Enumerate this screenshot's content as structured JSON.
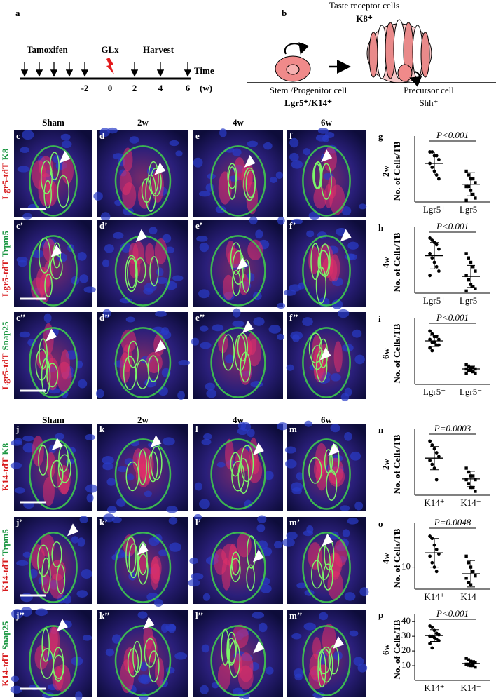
{
  "panel_a": {
    "label": "a",
    "treatment": "Tamoxifen",
    "injury": "GLx",
    "harvest": "Harvest",
    "axis_label": "Time",
    "axis_unit": "(w)",
    "ticks": [
      -2,
      0,
      2,
      4,
      6
    ]
  },
  "panel_b": {
    "label": "b",
    "top_label": "Taste receptor cells",
    "top_marker": "K8⁺",
    "stem_label": "Stem /Progenitor cell",
    "stem_marker": "Lgr5⁺/K14⁺",
    "precursor_label": "Precursor cell",
    "precursor_marker": "Shh⁺"
  },
  "image_blocks": [
    {
      "columns": [
        "Sham",
        "2w",
        "4w",
        "6w"
      ],
      "rows": [
        {
          "marker": "Lgr5-tdT",
          "stain": "K8",
          "panels": [
            "c",
            "d",
            "e",
            "f"
          ]
        },
        {
          "marker": "Lgr5-tdT",
          "stain": "Trpm5",
          "panels": [
            "c’",
            "d’",
            "e’",
            "f’"
          ]
        },
        {
          "marker": "Lgr5-tdT",
          "stain": "Snap25",
          "panels": [
            "c’’",
            "d’’",
            "e’’",
            "f’’"
          ]
        }
      ]
    },
    {
      "columns": [
        "Sham",
        "2w",
        "4w",
        "6w"
      ],
      "rows": [
        {
          "marker": "K14-tdT",
          "stain": "K8",
          "panels": [
            "j",
            "k",
            "l",
            "m"
          ]
        },
        {
          "marker": "K14-tdT",
          "stain": "Trpm5",
          "panels": [
            "j’",
            "k’",
            "l’",
            "m’"
          ]
        },
        {
          "marker": "K14-tdT",
          "stain": "Snap25",
          "panels": [
            "j’’",
            "k’’",
            "l’’",
            "m’’"
          ]
        }
      ]
    }
  ],
  "charts": [
    {
      "type": "dotplot",
      "label": "g",
      "row_label": "2w",
      "ylabel": "No. of Cells/TB",
      "annotation": "P<0.001",
      "ylim": [
        0,
        8
      ],
      "groups": [
        {
          "name": "Lgr5⁺",
          "values": [
            6.5,
            6.5,
            6,
            6,
            5.5,
            5,
            4.5,
            4,
            3.5,
            3
          ],
          "mean": 5,
          "sd": 1.5
        },
        {
          "name": "Lgr5⁻",
          "values": [
            4,
            3.5,
            3,
            3,
            2.5,
            2,
            2,
            1.5,
            1,
            0.5,
            0.2
          ],
          "mean": 2.3,
          "sd": 1.5
        }
      ]
    },
    {
      "type": "dotplot",
      "label": "h",
      "row_label": "4w",
      "ylabel": "No. of Cells/TB",
      "annotation": "P<0.001",
      "ylim": [
        0,
        14
      ],
      "groups": [
        {
          "name": "Lgr5⁺",
          "values": [
            12.5,
            12,
            11.5,
            11,
            10,
            9,
            8,
            7,
            6,
            5,
            4
          ],
          "mean": 8.5,
          "sd": 3
        },
        {
          "name": "Lgr5⁻",
          "values": [
            9,
            8,
            7,
            6,
            5,
            4,
            3,
            2,
            1.5,
            1,
            0.5
          ],
          "mean": 3.8,
          "sd": 2.5
        }
      ]
    },
    {
      "type": "dotplot",
      "label": "i",
      "row_label": "6w",
      "ylabel": "No. of Cells/TB",
      "annotation": "P<0.001",
      "ylim": [
        0,
        22
      ],
      "groups": [
        {
          "name": "Lgr5⁺",
          "values": [
            19,
            18,
            17,
            17,
            16,
            16,
            15,
            15,
            14,
            14,
            13,
            12
          ],
          "mean": 15.5,
          "sd": 2
        },
        {
          "name": "Lgr5⁻",
          "values": [
            7,
            6.5,
            6,
            6,
            5.5,
            5.5,
            5,
            5,
            4.5,
            4,
            4
          ],
          "mean": 5.5,
          "sd": 1
        }
      ]
    },
    {
      "type": "dotplot",
      "label": "n",
      "row_label": "2w",
      "ylabel": "No. of Cells/TB",
      "annotation": "P=0.0003",
      "ylim": [
        0,
        8
      ],
      "groups": [
        {
          "name": "K14⁺",
          "values": [
            7,
            6.5,
            6,
            5.5,
            5,
            4.5,
            4,
            3.5,
            2
          ],
          "mean": 4.8,
          "sd": 1.5
        },
        {
          "name": "K14⁻",
          "values": [
            3.5,
            3,
            2.5,
            2.5,
            2,
            2,
            1.5,
            1,
            1,
            0.5
          ],
          "mean": 2.1,
          "sd": 1
        }
      ]
    },
    {
      "type": "dotplot",
      "label": "o",
      "row_label": "4w",
      "ylabel": "No. of Cells/TB",
      "annotation": "P=0.0048",
      "ylim": [
        0,
        28
      ],
      "yticks": [
        10
      ],
      "groups": [
        {
          "name": "K14⁺",
          "values": [
            24,
            23,
            20,
            18,
            16,
            15,
            12,
            10,
            8
          ],
          "mean": 16.5,
          "sd": 6.5
        },
        {
          "name": "K14⁻",
          "values": [
            15,
            12,
            10,
            8,
            6,
            5,
            3,
            2
          ],
          "mean": 7,
          "sd": 6
        }
      ]
    },
    {
      "type": "dotplot",
      "label": "p",
      "row_label": "6w",
      "ylabel": "No. of Cells/TB",
      "annotation": "P<0.001",
      "ylim": [
        0,
        42
      ],
      "yticks": [
        10,
        20,
        30,
        40
      ],
      "groups": [
        {
          "name": "K14⁺",
          "values": [
            37,
            36,
            34,
            32,
            31,
            30,
            30,
            29,
            28,
            27,
            25,
            22
          ],
          "mean": 30.5,
          "sd": 4
        },
        {
          "name": "K14⁻",
          "values": [
            15,
            14,
            13,
            12,
            12,
            11,
            11,
            10,
            10,
            9
          ],
          "mean": 11.5,
          "sd": 2
        }
      ]
    }
  ]
}
